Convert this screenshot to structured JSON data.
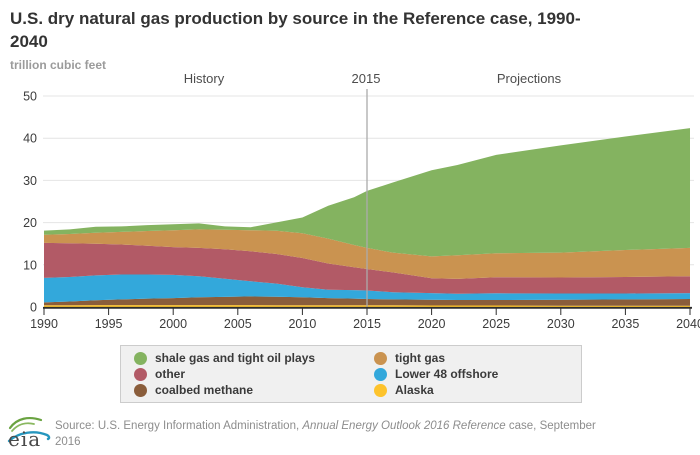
{
  "header": {
    "title": "U.S. dry natural gas production by source in the Reference case, 1990-2040",
    "units_label": "trillion cubic feet"
  },
  "annotations": {
    "history": "History",
    "divider_year": "2015",
    "projections": "Projections"
  },
  "chart_data": {
    "type": "area",
    "stacked": true,
    "title": "U.S. dry natural gas production by source in the Reference case, 1990-2040",
    "ylabel": "trillion cubic feet",
    "xlabel": "",
    "ylim": [
      0,
      50
    ],
    "xlim": [
      1990,
      2040
    ],
    "y_ticks": [
      0,
      10,
      20,
      30,
      40,
      50
    ],
    "x_ticks": [
      1990,
      1995,
      2000,
      2005,
      2010,
      2015,
      2020,
      2025,
      2030,
      2035,
      2040
    ],
    "divider_x": 2015,
    "grid": "horizontal",
    "x": [
      1990,
      1992,
      1994,
      1996,
      1998,
      2000,
      2002,
      2004,
      2006,
      2008,
      2010,
      2012,
      2014,
      2015,
      2017,
      2020,
      2022,
      2025,
      2030,
      2035,
      2040
    ],
    "series": [
      {
        "name": "Alaska",
        "color": "#FDC32C",
        "values": [
          0.4,
          0.4,
          0.45,
          0.45,
          0.45,
          0.45,
          0.45,
          0.45,
          0.45,
          0.4,
          0.4,
          0.4,
          0.4,
          0.4,
          0.4,
          0.35,
          0.35,
          0.35,
          0.3,
          0.3,
          0.3
        ]
      },
      {
        "name": "coalbed methane",
        "color": "#8A5D3B",
        "values": [
          0.7,
          0.9,
          1.15,
          1.35,
          1.55,
          1.65,
          1.85,
          1.95,
          2.05,
          2.05,
          1.9,
          1.7,
          1.6,
          1.5,
          1.4,
          1.35,
          1.3,
          1.3,
          1.4,
          1.5,
          1.6
        ]
      },
      {
        "name": "Lower 48 offshore",
        "color": "#33A8DB",
        "values": [
          5.8,
          5.8,
          5.9,
          5.9,
          5.7,
          5.5,
          5.0,
          4.3,
          3.6,
          3.1,
          2.4,
          2.0,
          2.0,
          2.0,
          1.7,
          1.6,
          1.5,
          1.6,
          1.5,
          1.4,
          1.4
        ]
      },
      {
        "name": "other",
        "color": "#B25A66",
        "values": [
          8.3,
          8.0,
          7.5,
          7.1,
          6.8,
          6.6,
          6.7,
          7.0,
          7.1,
          7.0,
          6.9,
          6.2,
          5.4,
          5.1,
          4.7,
          3.5,
          3.5,
          3.8,
          3.8,
          3.9,
          4.0
        ]
      },
      {
        "name": "tight gas",
        "color": "#CA9350",
        "values": [
          1.9,
          2.2,
          2.6,
          3.0,
          3.5,
          4.0,
          4.4,
          4.6,
          5.0,
          5.5,
          5.9,
          5.9,
          5.3,
          5.0,
          4.7,
          5.2,
          5.6,
          5.7,
          5.9,
          6.4,
          6.7
        ]
      },
      {
        "name": "shale gas and tight oil plays",
        "color": "#84B360",
        "values": [
          1.0,
          1.1,
          1.4,
          1.3,
          1.4,
          1.4,
          1.4,
          0.8,
          0.7,
          2.0,
          3.7,
          7.8,
          11.3,
          13.5,
          16.6,
          20.4,
          21.4,
          23.3,
          25.4,
          26.9,
          28.4
        ]
      }
    ],
    "legend_position": "bottom"
  },
  "legend": {
    "items": [
      {
        "label": "shale gas and tight oil plays",
        "color": "#84B360"
      },
      {
        "label": "tight gas",
        "color": "#CA9350"
      },
      {
        "label": "other",
        "color": "#B25A66"
      },
      {
        "label": "Lower 48 offshore",
        "color": "#33A8DB"
      },
      {
        "label": "coalbed methane",
        "color": "#8A5D3B"
      },
      {
        "label": "Alaska",
        "color": "#FDC32C"
      }
    ]
  },
  "footer": {
    "logo_text": "eia",
    "source_prefix": "Source: U.S. Energy Information Administration, ",
    "source_italic": "Annual Energy Outlook 2016 Reference",
    "source_mid": " case, September",
    "source_line2": "2016"
  },
  "colors": {
    "grid_line": "#e4e4e4",
    "axis_line": "#2d2d2d",
    "divider_line": "#ababab",
    "legend_background": "#f0f0f0",
    "legend_border": "#cccccc"
  }
}
